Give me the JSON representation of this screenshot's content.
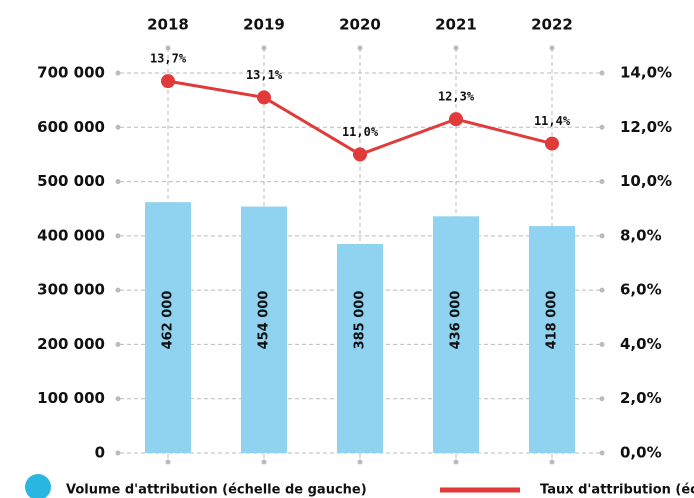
{
  "chart_data": {
    "type": "bar-line",
    "categories": [
      "2018",
      "2019",
      "2020",
      "2021",
      "2022"
    ],
    "series": [
      {
        "name": "Volume d'attribution (échelle de gauche)",
        "type": "bar",
        "color": "#8fd3f0",
        "legend_color": "#29b6e0",
        "values": [
          462000,
          454000,
          385000,
          436000,
          418000
        ],
        "value_labels": [
          "462 000",
          "454 000",
          "385 000",
          "436 000",
          "418 000"
        ]
      },
      {
        "name": "Taux d'attribution (échelle de droite)",
        "type": "line",
        "axis": "y2",
        "color": "#e03a3a",
        "values": [
          13.7,
          13.1,
          11.0,
          12.3,
          11.4
        ],
        "value_labels": [
          "13,7%",
          "13,1%",
          "11,0%",
          "12,3%",
          "11,4%"
        ]
      }
    ],
    "ylim": [
      0,
      700000
    ],
    "yticks": [
      {
        "value": 0,
        "label": "0"
      },
      {
        "value": 100000,
        "label": "100 000"
      },
      {
        "value": 200000,
        "label": "200 000"
      },
      {
        "value": 300000,
        "label": "300 000"
      },
      {
        "value": 400000,
        "label": "400 000"
      },
      {
        "value": 500000,
        "label": "500 000"
      },
      {
        "value": 600000,
        "label": "600 000"
      },
      {
        "value": 700000,
        "label": "700 000"
      }
    ],
    "y2lim": [
      0,
      14
    ],
    "y2ticks": [
      {
        "value": 0,
        "label": "0,0%"
      },
      {
        "value": 2,
        "label": "2,0%"
      },
      {
        "value": 4,
        "label": "4,0%"
      },
      {
        "value": 6,
        "label": "6,0%"
      },
      {
        "value": 8,
        "label": "8,0%"
      },
      {
        "value": 10,
        "label": "10,0%"
      },
      {
        "value": 12,
        "label": "12,0%"
      },
      {
        "value": 14,
        "label": "14,0%"
      }
    ],
    "grid": true
  }
}
